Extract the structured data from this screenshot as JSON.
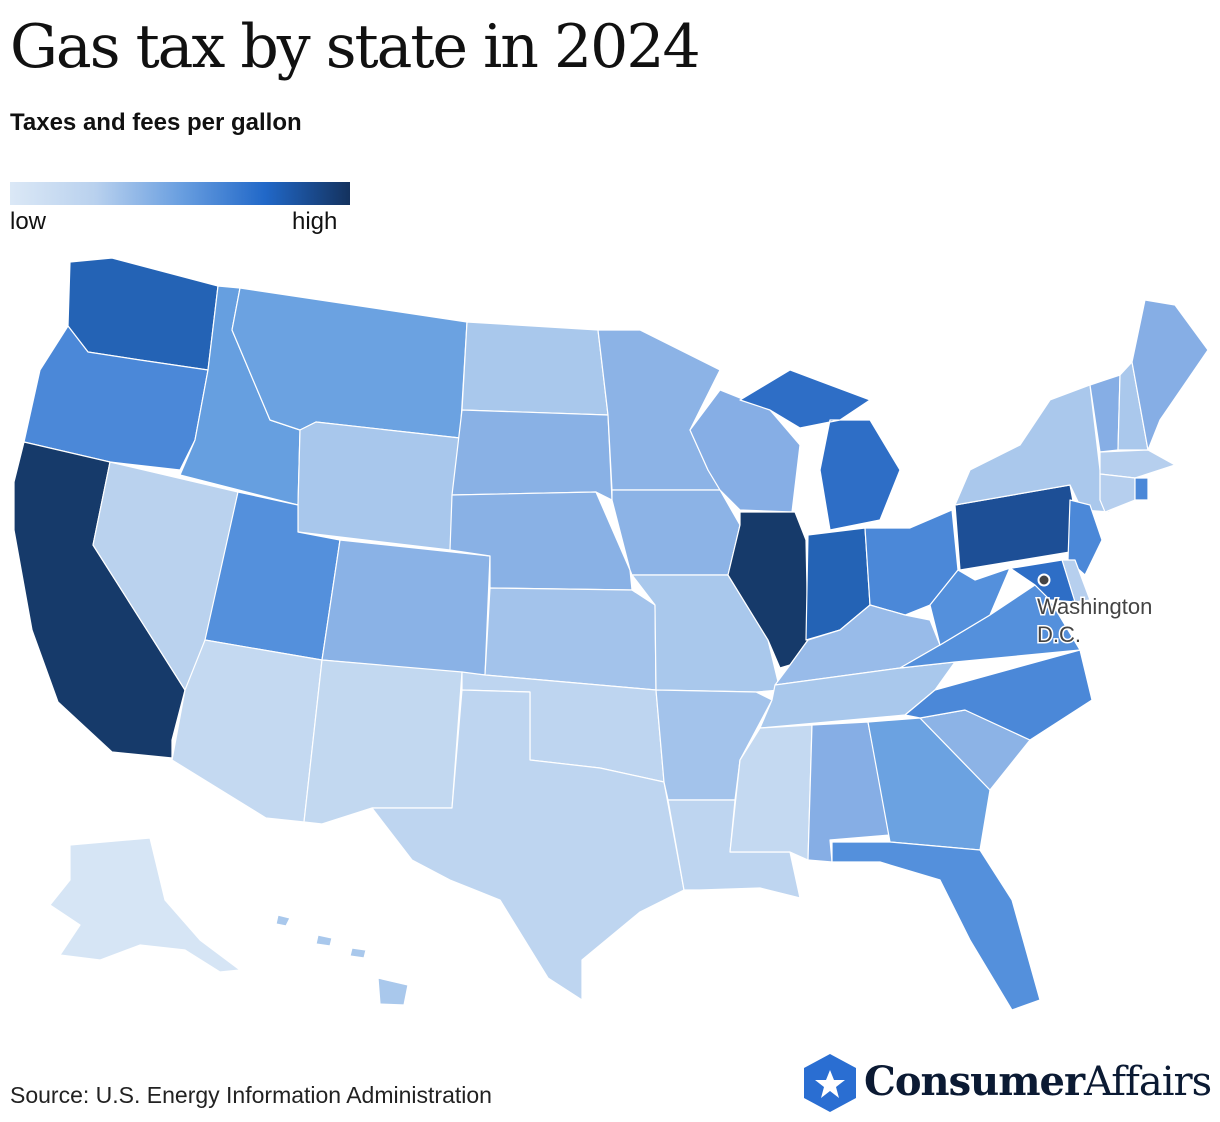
{
  "title": "Gas tax by state in 2024",
  "subtitle": "Taxes and fees per gallon",
  "legend": {
    "low_label": "low",
    "high_label": "high",
    "color_scale": [
      "#dbe8f6",
      "#b9d1ee",
      "#6a9fe0",
      "#2168c8",
      "#14325e"
    ]
  },
  "annotation": {
    "dc_label_line1": "Washington",
    "dc_label_line2": "D.C."
  },
  "source": "Source: U.S. Energy Information Administration",
  "brand": {
    "name_bold": "Consumer",
    "name_light": "Affairs"
  },
  "state_colors": {
    "WA": "#2463b5",
    "OR": "#4b88d8",
    "CA": "#163a6a",
    "ID": "#669fe0",
    "NV": "#bad2ee",
    "MT": "#6ba2e1",
    "WY": "#a8c7ec",
    "UT": "#5490dc",
    "AZ": "#c4d9f1",
    "CO": "#8ab2e6",
    "NM": "#c2d8f0",
    "ND": "#a9c8ec",
    "SD": "#89b1e5",
    "NE": "#89b1e5",
    "KS": "#a3c3eb",
    "OK": "#bed5f0",
    "TX": "#bed5f0",
    "MN": "#8cb3e6",
    "IA": "#8cb3e6",
    "MO": "#a9c8ec",
    "AR": "#a3c3eb",
    "LA": "#bed5f0",
    "WI": "#86aee5",
    "IL": "#163a6a",
    "MI": "#2e6ec6",
    "IN": "#2463b5",
    "OH": "#4b88d8",
    "KY": "#98bbe9",
    "TN": "#a9c8ec",
    "MS": "#c4d9f1",
    "AL": "#86aee5",
    "GA": "#6ba2e1",
    "FL": "#5490dc",
    "SC": "#8cb3e6",
    "NC": "#4b88d8",
    "VA": "#5490dc",
    "WV": "#5490dc",
    "PA": "#1d4f96",
    "NY": "#aac8ec",
    "VT": "#86aee5",
    "NH": "#aac8ec",
    "ME": "#86aee5",
    "MA": "#b6cfee",
    "CT": "#b6cfee",
    "RI": "#4b88d8",
    "NJ": "#4b88d8",
    "DE": "#b6cfee",
    "MD": "#2e6ec6",
    "AK": "#d6e5f5",
    "HI": "#a9c8ec"
  }
}
